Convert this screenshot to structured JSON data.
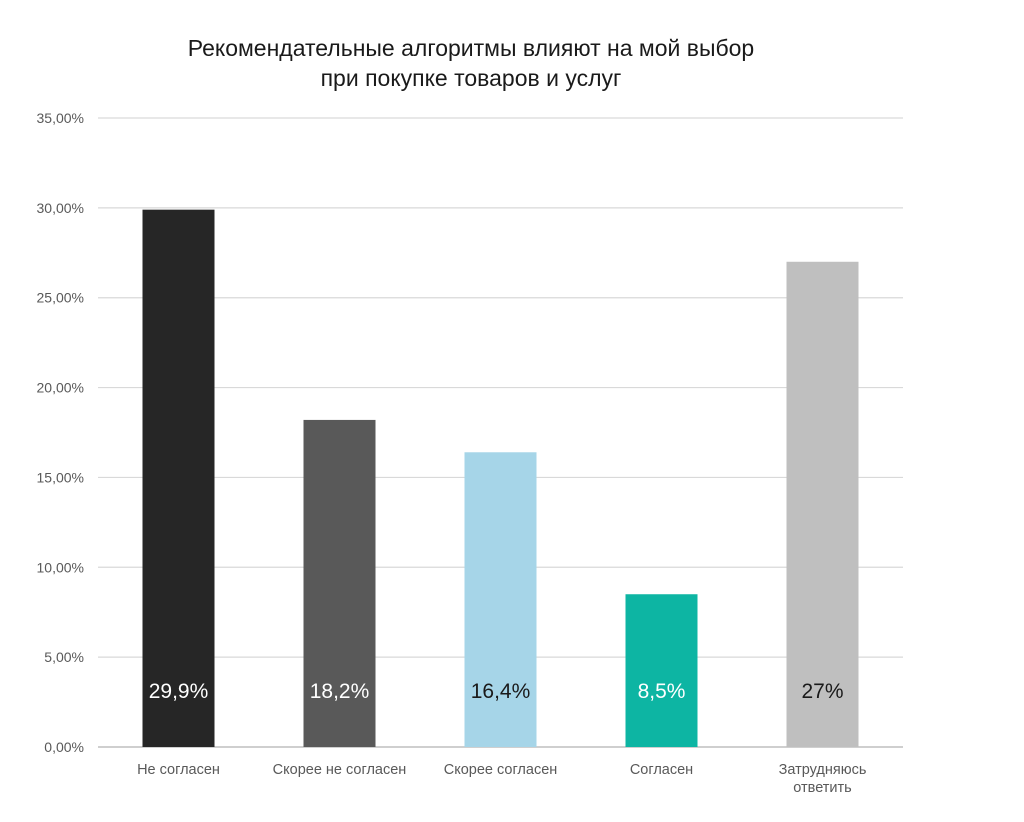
{
  "chart_data": {
    "type": "bar",
    "title_lines": [
      "Рекомендательные алгоритмы влияют на мой выбор",
      "при покупке товаров и услуг"
    ],
    "categories": [
      [
        "Не согласен"
      ],
      [
        "Скорее не согласен"
      ],
      [
        "Скорее согласен"
      ],
      [
        "Согласен"
      ],
      [
        "Затрудняюсь",
        "ответить"
      ]
    ],
    "values": [
      29.9,
      18.2,
      16.4,
      8.5,
      27
    ],
    "data_labels": [
      "29,9%",
      "18,2%",
      "16,4%",
      "8,5%",
      "27%"
    ],
    "colors": [
      "#262626",
      "#595959",
      "#a6d5e8",
      "#0db5a3",
      "#bfbfbf"
    ],
    "label_colors": [
      "#ffffff",
      "#ffffff",
      "#1a1a1a",
      "#ffffff",
      "#1a1a1a"
    ],
    "y_ticks": [
      0,
      5,
      10,
      15,
      20,
      25,
      30,
      35
    ],
    "y_tick_labels": [
      "0,00%",
      "5,00%",
      "10,00%",
      "15,00%",
      "20,00%",
      "25,00%",
      "30,00%",
      "35,00%"
    ],
    "ylim": [
      0,
      35
    ],
    "xlabel": "",
    "ylabel": "",
    "grid": true,
    "legend": "none"
  }
}
